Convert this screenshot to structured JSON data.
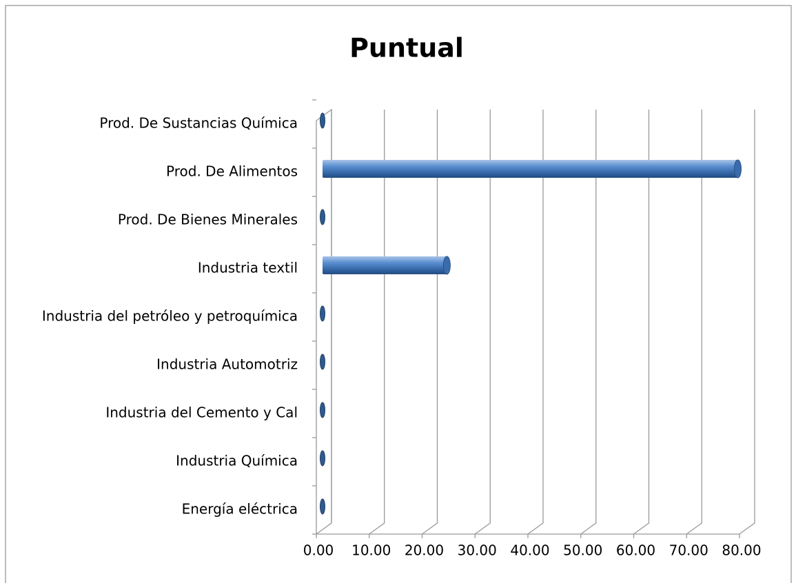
{
  "chart_data": {
    "type": "bar",
    "orientation": "horizontal",
    "style": "3d-cylinder",
    "title": "Puntual",
    "categories": [
      "Energía eléctrica",
      "Industria Química",
      "Industria del Cemento y Cal",
      "Industria Automotriz",
      "Industria del petróleo y petroquímica",
      "Industria textil",
      "Prod. De Bienes Minerales",
      "Prod. De Alimentos",
      "Prod. De Sustancias Química"
    ],
    "values": [
      0,
      0,
      0,
      0,
      0,
      23.5,
      0,
      78.5,
      0
    ],
    "color": "#4f81bd",
    "xlim": [
      0,
      80
    ],
    "xticks": [
      {
        "value": 0,
        "label": "0.00"
      },
      {
        "value": 10,
        "label": "10.00"
      },
      {
        "value": 20,
        "label": "20.00"
      },
      {
        "value": 30,
        "label": "30.00"
      },
      {
        "value": 40,
        "label": "40.00"
      },
      {
        "value": 50,
        "label": "50.00"
      },
      {
        "value": 60,
        "label": "60.00"
      },
      {
        "value": 70,
        "label": "70.00"
      },
      {
        "value": 80,
        "label": "80.00"
      }
    ],
    "grid": true
  }
}
